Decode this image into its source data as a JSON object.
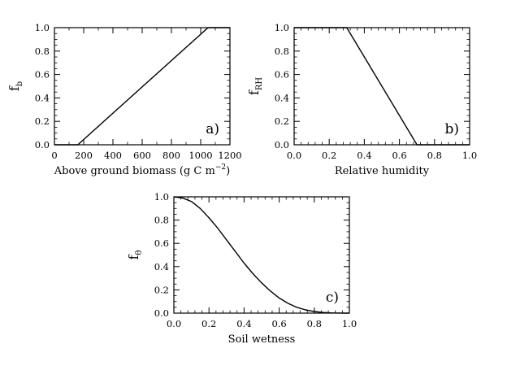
{
  "chart_data": [
    {
      "type": "line",
      "panel_label": "a)",
      "xlabel": "Above ground biomass (g C m",
      "xlabel_sup": "−2",
      "xlabel_close": ")",
      "ylabel": "f",
      "ylabel_sub": "b",
      "xlim": [
        0,
        1200
      ],
      "ylim": [
        0,
        1
      ],
      "xticks": [
        0,
        200,
        400,
        600,
        800,
        1000,
        1200
      ],
      "xtick_labels": [
        "0",
        "200",
        "400",
        "600",
        "800",
        "1000",
        "1200"
      ],
      "yticks": [
        0,
        0.2,
        0.4,
        0.6,
        0.8,
        1.0
      ],
      "ytick_labels": [
        "0.0",
        "0.2",
        "0.4",
        "0.6",
        "0.8",
        "1.0"
      ],
      "x": [
        0,
        160,
        1050,
        1200
      ],
      "y": [
        0,
        0,
        1,
        1
      ]
    },
    {
      "type": "line",
      "panel_label": "b)",
      "xlabel": "Relative humidity",
      "ylabel": "f",
      "ylabel_sub": "RH",
      "xlim": [
        0,
        1
      ],
      "ylim": [
        0,
        1
      ],
      "xticks": [
        0,
        0.2,
        0.4,
        0.6,
        0.8,
        1.0
      ],
      "xtick_labels": [
        "0.0",
        "0.2",
        "0.4",
        "0.6",
        "0.8",
        "1.0"
      ],
      "yticks": [
        0,
        0.2,
        0.4,
        0.6,
        0.8,
        1.0
      ],
      "ytick_labels": [
        "0.0",
        "0.2",
        "0.4",
        "0.6",
        "0.8",
        "1.0"
      ],
      "x": [
        0,
        0.3,
        0.7,
        1.0
      ],
      "y": [
        1,
        1,
        0,
        0
      ]
    },
    {
      "type": "line",
      "panel_label": "c)",
      "xlabel": "Soil wetness",
      "ylabel": "f",
      "ylabel_sub": "θ",
      "xlim": [
        0,
        1
      ],
      "ylim": [
        0,
        1
      ],
      "xticks": [
        0,
        0.2,
        0.4,
        0.6,
        0.8,
        1.0
      ],
      "xtick_labels": [
        "0.0",
        "0.2",
        "0.4",
        "0.6",
        "0.8",
        "1.0"
      ],
      "yticks": [
        0,
        0.2,
        0.4,
        0.6,
        0.8,
        1.0
      ],
      "ytick_labels": [
        "0.0",
        "0.2",
        "0.4",
        "0.6",
        "0.8",
        "1.0"
      ],
      "x": [
        0,
        0.05,
        0.1,
        0.15,
        0.2,
        0.25,
        0.3,
        0.35,
        0.4,
        0.45,
        0.5,
        0.55,
        0.6,
        0.65,
        0.7,
        0.75,
        0.8,
        0.85,
        0.9,
        0.95,
        1.0
      ],
      "y": [
        1.0,
        0.99,
        0.96,
        0.9,
        0.82,
        0.73,
        0.63,
        0.53,
        0.43,
        0.34,
        0.26,
        0.19,
        0.13,
        0.085,
        0.05,
        0.028,
        0.014,
        0.006,
        0.002,
        0.0005,
        0
      ]
    }
  ]
}
